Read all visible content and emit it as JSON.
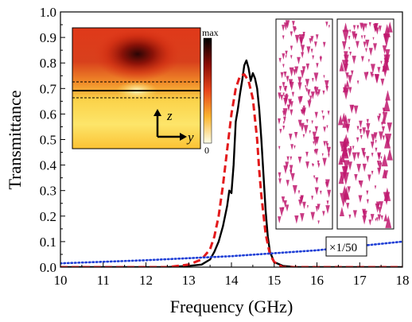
{
  "chart_data": {
    "type": "line",
    "xlabel": "Frequency (GHz)",
    "ylabel": "Transmittance",
    "xlim": [
      10,
      18
    ],
    "ylim": [
      0.0,
      1.0
    ],
    "x_ticks": [
      "10",
      "11",
      "12",
      "13",
      "14",
      "15",
      "16",
      "17",
      "18"
    ],
    "y_ticks": [
      "0.0",
      "0.1",
      "0.2",
      "0.3",
      "0.4",
      "0.5",
      "0.6",
      "0.7",
      "0.8",
      "0.9",
      "1.0"
    ],
    "grid": false,
    "series": [
      {
        "style": "solid",
        "color": "#000000",
        "x": [
          10.0,
          12.5,
          13.0,
          13.3,
          13.5,
          13.6,
          13.7,
          13.8,
          13.9,
          13.95,
          14.0,
          14.05,
          14.1,
          14.15,
          14.2,
          14.25,
          14.3,
          14.35,
          14.4,
          14.45,
          14.5,
          14.55,
          14.6,
          14.65,
          14.7,
          14.75,
          14.8,
          14.85,
          14.9,
          15.0,
          15.2,
          15.5,
          18.0
        ],
        "y": [
          0.0,
          0.0,
          0.005,
          0.01,
          0.03,
          0.06,
          0.1,
          0.16,
          0.24,
          0.3,
          0.29,
          0.4,
          0.57,
          0.62,
          0.68,
          0.73,
          0.79,
          0.81,
          0.78,
          0.73,
          0.76,
          0.74,
          0.7,
          0.62,
          0.5,
          0.36,
          0.22,
          0.12,
          0.06,
          0.02,
          0.005,
          0.0,
          0.0
        ]
      },
      {
        "style": "dashed",
        "color": "#e31a1c",
        "x": [
          10.0,
          12.5,
          13.0,
          13.3,
          13.5,
          13.6,
          13.7,
          13.8,
          13.9,
          14.0,
          14.1,
          14.2,
          14.3,
          14.4,
          14.5,
          14.6,
          14.65,
          14.7,
          14.8,
          14.9,
          15.0,
          15.2,
          18.0
        ],
        "y": [
          0.0,
          0.0,
          0.01,
          0.03,
          0.07,
          0.12,
          0.2,
          0.32,
          0.46,
          0.6,
          0.7,
          0.75,
          0.755,
          0.73,
          0.66,
          0.5,
          0.38,
          0.28,
          0.13,
          0.05,
          0.02,
          0.0,
          0.0
        ]
      },
      {
        "style": "dotted",
        "color": "#1f3fd6",
        "x": [
          10.0,
          12.0,
          14.0,
          16.0,
          18.0
        ],
        "y": [
          0.015,
          0.027,
          0.043,
          0.066,
          0.1
        ]
      }
    ],
    "annotations": [
      "×1/50"
    ],
    "inset_colorbar": {
      "max_label": "max",
      "min_label": "0"
    },
    "inset_axes": {
      "z_label": "z",
      "y_label": "y"
    }
  }
}
